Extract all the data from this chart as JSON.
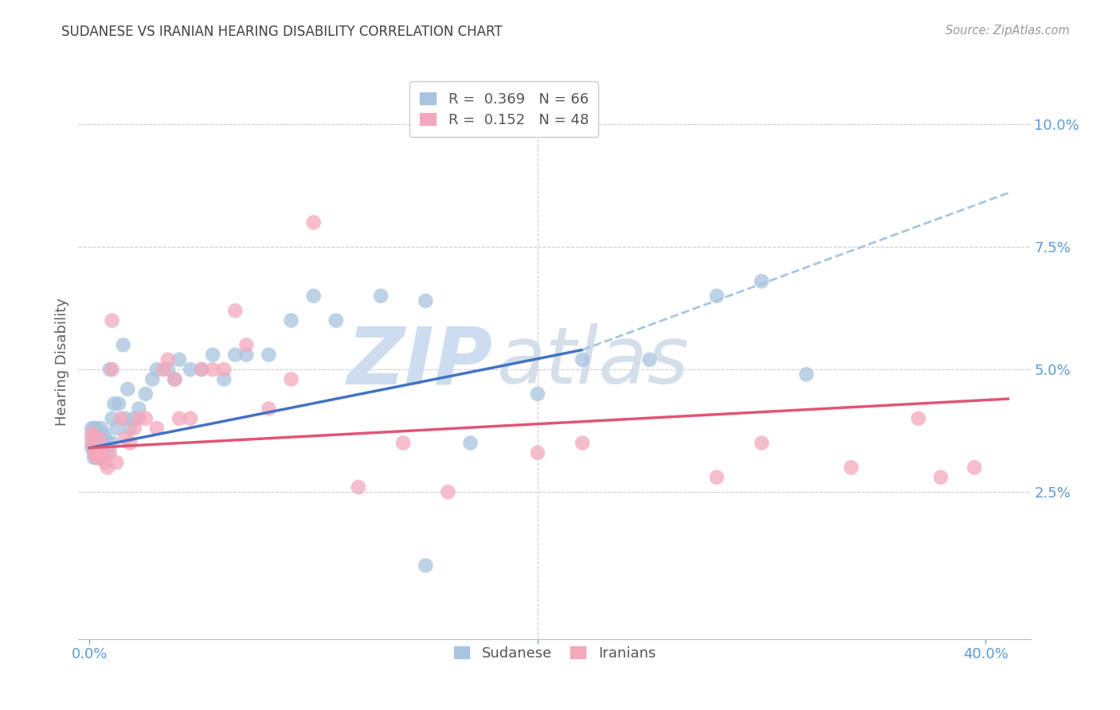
{
  "title": "SUDANESE VS IRANIAN HEARING DISABILITY CORRELATION CHART",
  "source": "Source: ZipAtlas.com",
  "ylabel": "Hearing Disability",
  "xlim": [
    -0.005,
    0.42
  ],
  "ylim": [
    -0.005,
    0.108
  ],
  "sudanese_R": 0.369,
  "sudanese_N": 66,
  "iranian_R": 0.152,
  "iranian_N": 48,
  "sudanese_color": "#a8c4e0",
  "iranian_color": "#f4a8bc",
  "sudanese_line_color": "#4472c4",
  "iranian_line_color": "#e05575",
  "dashed_line_color": "#a8c4e0",
  "watermark_color": "#d0dff0",
  "grid_color": "#cccccc",
  "title_color": "#404040",
  "tick_color": "#5b9bd5",
  "sudanese_x": [
    0.001,
    0.001,
    0.001,
    0.002,
    0.002,
    0.002,
    0.002,
    0.003,
    0.003,
    0.003,
    0.003,
    0.003,
    0.004,
    0.004,
    0.004,
    0.004,
    0.005,
    0.005,
    0.005,
    0.005,
    0.005,
    0.006,
    0.006,
    0.006,
    0.007,
    0.007,
    0.008,
    0.008,
    0.009,
    0.01,
    0.01,
    0.011,
    0.012,
    0.013,
    0.015,
    0.016,
    0.017,
    0.018,
    0.02,
    0.022,
    0.025,
    0.028,
    0.03,
    0.035,
    0.038,
    0.04,
    0.045,
    0.05,
    0.055,
    0.06,
    0.065,
    0.07,
    0.08,
    0.09,
    0.1,
    0.11,
    0.13,
    0.15,
    0.17,
    0.2,
    0.22,
    0.25,
    0.28,
    0.3,
    0.32,
    0.15
  ],
  "sudanese_y": [
    0.034,
    0.036,
    0.038,
    0.032,
    0.034,
    0.036,
    0.038,
    0.032,
    0.034,
    0.035,
    0.037,
    0.038,
    0.033,
    0.035,
    0.036,
    0.037,
    0.032,
    0.034,
    0.035,
    0.036,
    0.038,
    0.033,
    0.035,
    0.037,
    0.034,
    0.036,
    0.033,
    0.035,
    0.05,
    0.035,
    0.04,
    0.043,
    0.038,
    0.043,
    0.055,
    0.04,
    0.046,
    0.038,
    0.04,
    0.042,
    0.045,
    0.048,
    0.05,
    0.05,
    0.048,
    0.052,
    0.05,
    0.05,
    0.053,
    0.048,
    0.053,
    0.053,
    0.053,
    0.06,
    0.065,
    0.06,
    0.065,
    0.01,
    0.035,
    0.045,
    0.052,
    0.052,
    0.065,
    0.068,
    0.049,
    0.064
  ],
  "iranian_x": [
    0.001,
    0.001,
    0.002,
    0.002,
    0.003,
    0.003,
    0.004,
    0.004,
    0.005,
    0.005,
    0.006,
    0.007,
    0.008,
    0.009,
    0.01,
    0.012,
    0.014,
    0.016,
    0.018,
    0.02,
    0.022,
    0.025,
    0.03,
    0.033,
    0.035,
    0.038,
    0.04,
    0.045,
    0.05,
    0.055,
    0.06,
    0.065,
    0.07,
    0.08,
    0.09,
    0.1,
    0.12,
    0.14,
    0.16,
    0.2,
    0.22,
    0.28,
    0.3,
    0.34,
    0.37,
    0.38,
    0.395,
    0.01
  ],
  "iranian_y": [
    0.035,
    0.037,
    0.033,
    0.036,
    0.032,
    0.035,
    0.033,
    0.036,
    0.032,
    0.034,
    0.033,
    0.031,
    0.03,
    0.033,
    0.06,
    0.031,
    0.04,
    0.036,
    0.035,
    0.038,
    0.04,
    0.04,
    0.038,
    0.05,
    0.052,
    0.048,
    0.04,
    0.04,
    0.05,
    0.05,
    0.05,
    0.062,
    0.055,
    0.042,
    0.048,
    0.08,
    0.026,
    0.035,
    0.025,
    0.033,
    0.035,
    0.028,
    0.035,
    0.03,
    0.04,
    0.028,
    0.03,
    0.05
  ],
  "sudanese_line_x_start": 0.0,
  "sudanese_line_x_solid_end": 0.22,
  "sudanese_line_x_dashed_end": 0.41,
  "sudanese_line_y_start": 0.034,
  "sudanese_line_y_at_solid_end": 0.054,
  "sudanese_line_y_at_dashed_end": 0.086,
  "iranian_line_x_start": 0.0,
  "iranian_line_x_end": 0.41,
  "iranian_line_y_start": 0.034,
  "iranian_line_y_end": 0.044
}
